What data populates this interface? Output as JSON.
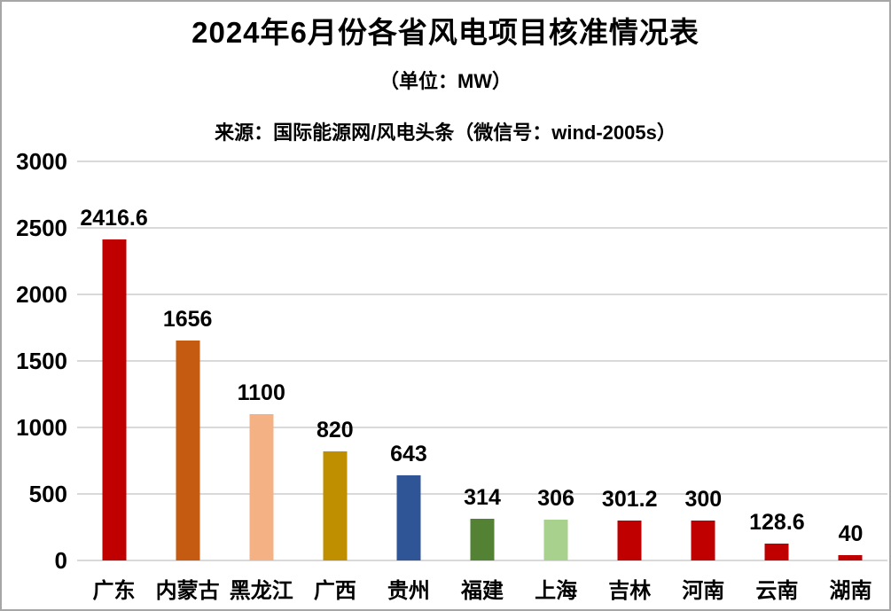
{
  "header": {
    "title": "2024年6月份各省风电项目核准情况表",
    "unit": "（单位：MW）",
    "source": "来源：国际能源网/风电头条（微信号：wind-2005s）"
  },
  "chart_data": {
    "type": "bar",
    "title": "2024年6月份各省风电项目核准情况表",
    "unit_label": "（单位：MW）",
    "source": "来源：国际能源网/风电头条（微信号：wind-2005s）",
    "categories": [
      "广东",
      "内蒙古",
      "黑龙江",
      "广西",
      "贵州",
      "福建",
      "上海",
      "吉林",
      "河南",
      "云南",
      "湖南"
    ],
    "values": [
      2416.6,
      1656,
      1100,
      820,
      643,
      314,
      306,
      301.2,
      300,
      128.6,
      40
    ],
    "value_labels": [
      "2416.6",
      "1656",
      "1100",
      "820",
      "643",
      "314",
      "306",
      "301.2",
      "300",
      "128.6",
      "40"
    ],
    "bar_colors": [
      "#c00000",
      "#c55a11",
      "#f4b183",
      "#bf8f00",
      "#2f5597",
      "#548235",
      "#a9d18e",
      "#c00000",
      "#c00000",
      "#c00000",
      "#c00000"
    ],
    "xlabel": "",
    "ylabel": "",
    "yticks": [
      0,
      500,
      1000,
      1500,
      2000,
      2500,
      3000
    ],
    "ylim": [
      0,
      3000
    ],
    "grid": true,
    "gridline_color": "#d9d9d9",
    "background_color": "#ffffff",
    "border_color": "#a6a6a6",
    "legend_position": "none"
  }
}
